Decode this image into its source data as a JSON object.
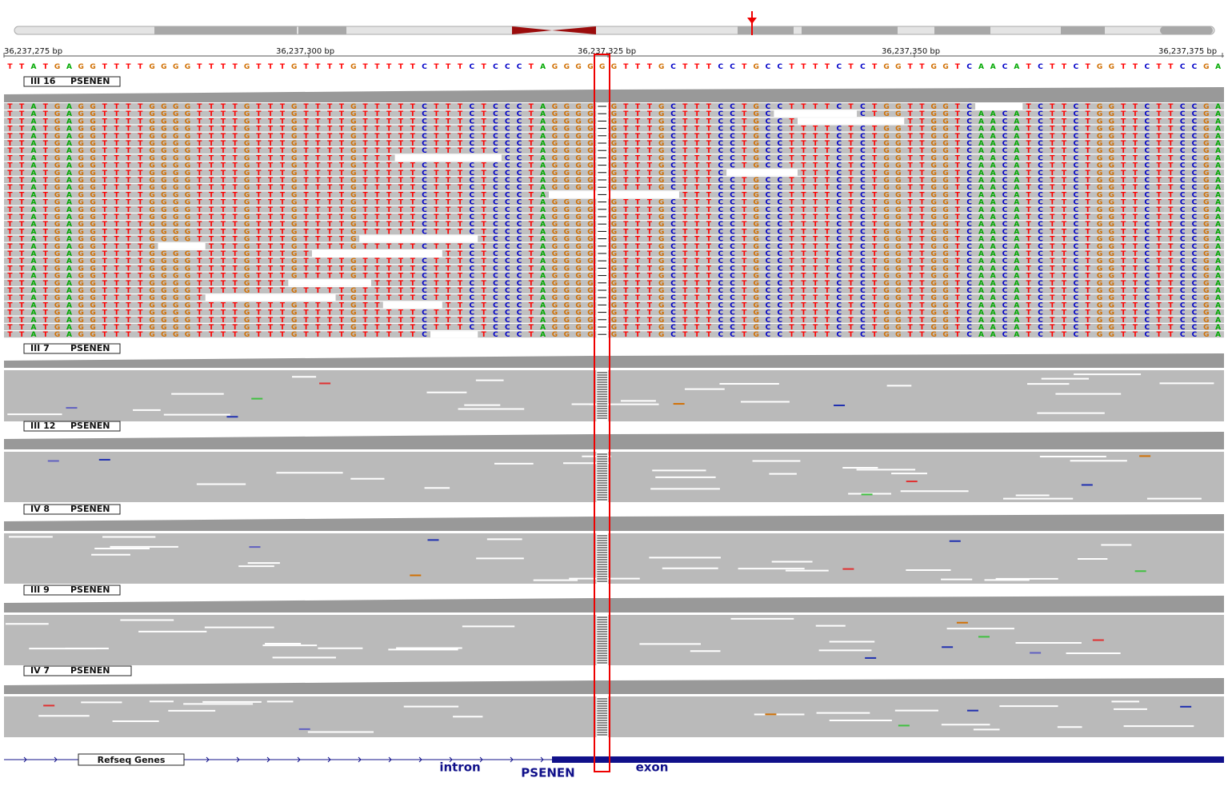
{
  "ruler": {
    "labels": [
      "36,237,275 bp",
      "36,237,300 bp",
      "36,237,325 bp",
      "36,237,350 bp",
      "36,237,375 bp"
    ]
  },
  "reference": {
    "sequence": "TTATGAGGTTTTGGGGTTTTGTTTGTTTTGTTTTTCTTTCTCCCTAGGGGGGTTTGCTTTCCTGCCTTTTCTCTGGTTGGTCAACATCTTCTGGTTCTTCCGA"
  },
  "tracks": [
    {
      "sample": "III 16",
      "gene": "PSENEN"
    },
    {
      "sample": "III 7",
      "gene": "PSENEN"
    },
    {
      "sample": "III 12",
      "gene": "PSENEN"
    },
    {
      "sample": "IV 8",
      "gene": "PSENEN"
    },
    {
      "sample": "III 9",
      "gene": "PSENEN"
    },
    {
      "sample": "IV 7",
      "gene": "PSENEN"
    }
  ],
  "genes": {
    "track_label": "Refseq Genes",
    "intron": "intron",
    "gene": "PSENEN",
    "exon": "exon"
  }
}
